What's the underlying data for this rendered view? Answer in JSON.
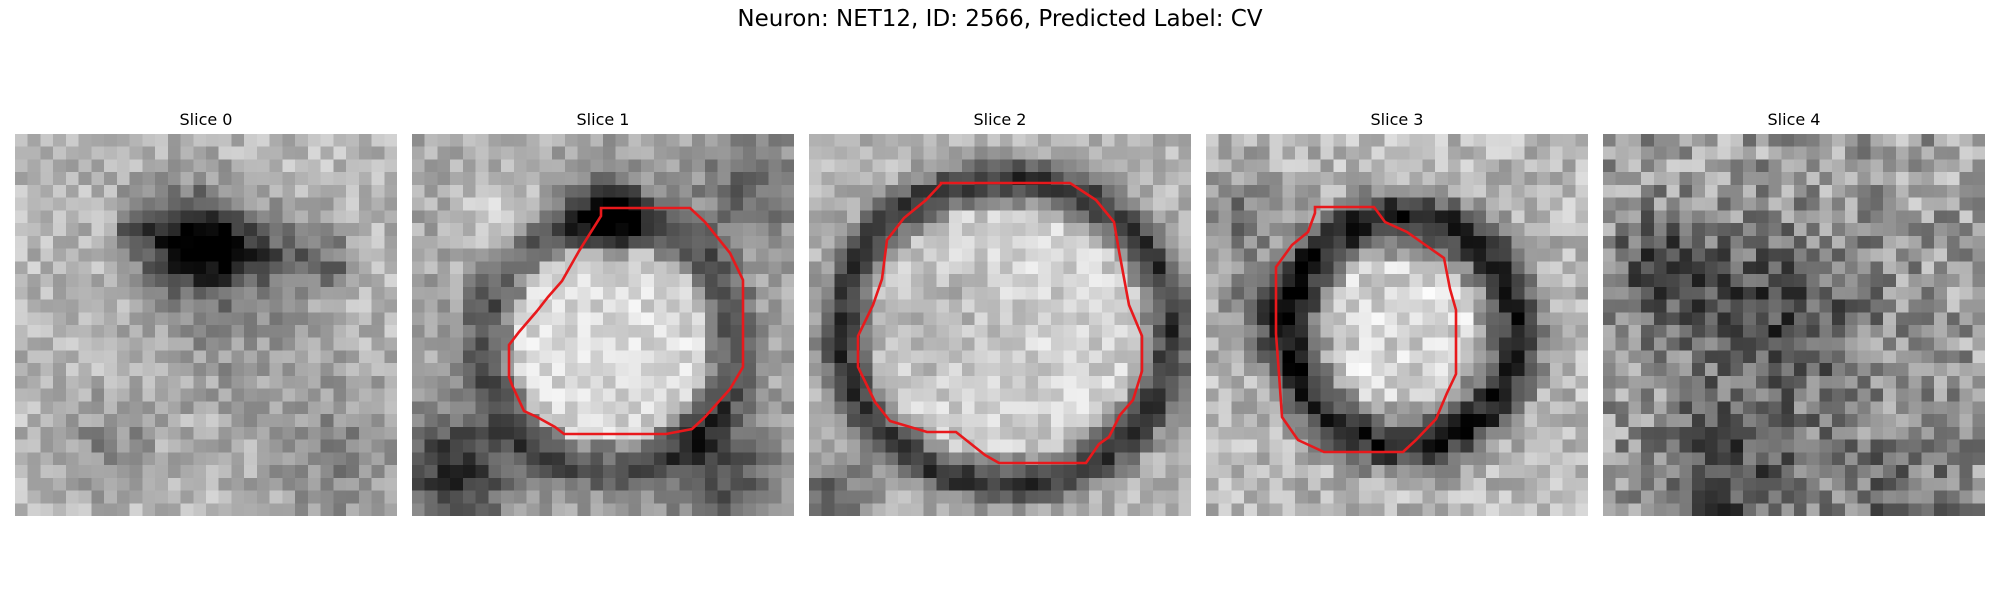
{
  "figure": {
    "title": "Neuron: NET12, ID: 2566, Predicted Label: CV"
  },
  "panels": [
    {
      "title": "Slice 0",
      "has_contour": false
    },
    {
      "title": "Slice 1",
      "has_contour": true
    },
    {
      "title": "Slice 2",
      "has_contour": true
    },
    {
      "title": "Slice 3",
      "has_contour": true
    },
    {
      "title": "Slice 4",
      "has_contour": false
    }
  ],
  "colors": {
    "contour": "#e8191c",
    "colormap": "grayscale"
  }
}
